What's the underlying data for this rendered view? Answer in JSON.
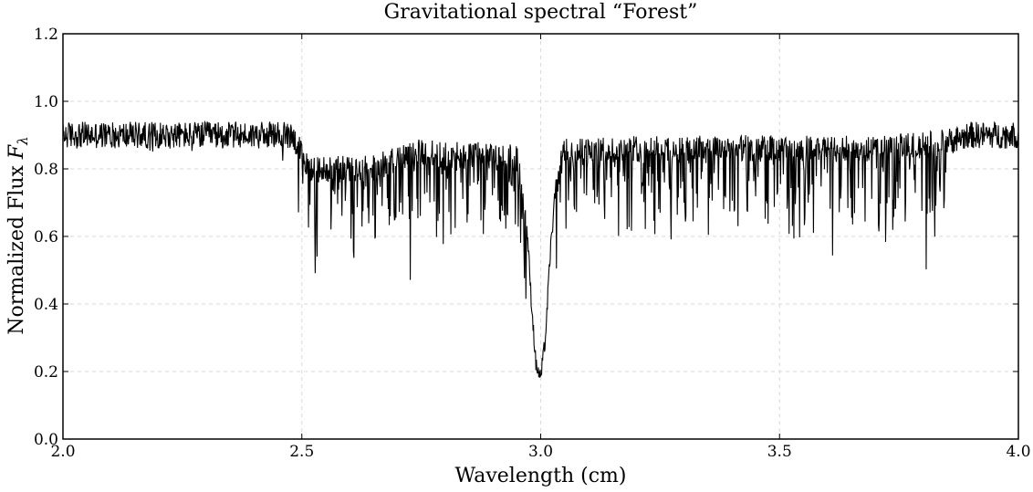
{
  "chart_data": {
    "type": "line",
    "title": "Gravitational spectral “Forest”",
    "xlabel": "Wavelength  (cm)",
    "ylabel": {
      "text": "Normalized Flux ",
      "symbol": "F",
      "subscript": "λ"
    },
    "xlim": [
      2.0,
      4.0
    ],
    "ylim": [
      0.0,
      1.2
    ],
    "xticks": [
      "2.0",
      "2.5",
      "3.0",
      "3.5",
      "4.0"
    ],
    "yticks": [
      "0.0",
      "0.2",
      "0.4",
      "0.6",
      "0.8",
      "1.0",
      "1.2"
    ],
    "grid": true,
    "line_color": "#000000",
    "series": [
      {
        "x": [
          2.0,
          2.05,
          2.1,
          2.15,
          2.2,
          2.25,
          2.3,
          2.35,
          2.4,
          2.45,
          2.48,
          2.5,
          2.52,
          2.55,
          2.6,
          2.65,
          2.7,
          2.75,
          2.8,
          2.85,
          2.9,
          2.93,
          2.95,
          2.97,
          2.98,
          2.99,
          3.0,
          3.01,
          3.02,
          3.03,
          3.04,
          3.05,
          3.1,
          3.2,
          3.3,
          3.4,
          3.5,
          3.6,
          3.7,
          3.8,
          3.85,
          3.9,
          3.95,
          4.0
        ],
        "y": [
          0.9,
          0.9,
          0.9,
          0.9,
          0.9,
          0.9,
          0.9,
          0.9,
          0.9,
          0.9,
          0.9,
          0.84,
          0.8,
          0.8,
          0.8,
          0.8,
          0.83,
          0.85,
          0.84,
          0.84,
          0.84,
          0.84,
          0.83,
          0.66,
          0.42,
          0.22,
          0.18,
          0.3,
          0.55,
          0.72,
          0.8,
          0.85,
          0.85,
          0.86,
          0.86,
          0.86,
          0.86,
          0.86,
          0.86,
          0.87,
          0.88,
          0.9,
          0.9,
          0.9
        ]
      }
    ]
  }
}
